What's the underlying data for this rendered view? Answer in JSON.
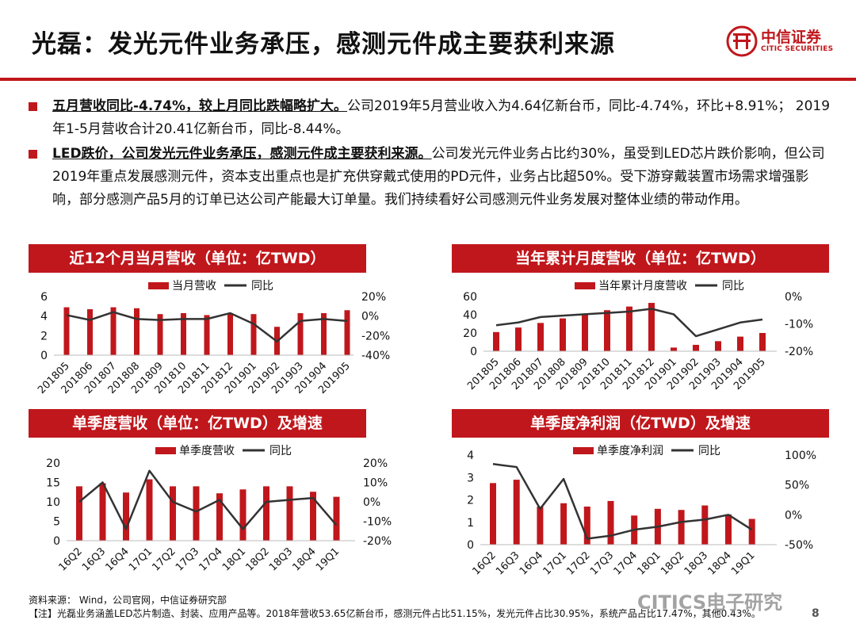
{
  "header": {
    "title": "光磊：发光元件业务承压，感测元件成主要获利来源",
    "logo_cn": "中信证券",
    "logo_en": "CITIC SECURITIES"
  },
  "bullets": [
    {
      "highlight": "五月营收同比-4.74%，较上月同比跌幅略扩大。",
      "text": "公司2019年5月营业收入为4.64亿新台币，同比-4.74%，环比+8.91%；  2019年1-5月营收合计20.41亿新台币，同比-8.44%。"
    },
    {
      "highlight": "LED跌价，公司发光元件业务承压，感测元件成主要获利来源。",
      "text": "公司发光元件业务占比约30%，虽受到LED芯片跌价影响，但公司2019年重点发展感测元件，资本支出重点也是扩充供穿戴式使用的PD元件，业务占比超50%。受下游穿戴装置市场需求增强影响，部分感测产品5月的订单已达公司产能最大订单量。我们持续看好公司感测元件业务发展对整体业绩的带动作用。"
    }
  ],
  "colors": {
    "bar": "#c0171c",
    "line": "#333333",
    "accent": "#c0171c"
  },
  "chart_data": [
    {
      "type": "bar",
      "title": "近12个月当月营收（单位：亿TWD）",
      "categories": [
        "201805",
        "201806",
        "201807",
        "201808",
        "201809",
        "201810",
        "201811",
        "201812",
        "201901",
        "201902",
        "201903",
        "201904",
        "201905"
      ],
      "series": [
        {
          "name": "当月营收",
          "type": "bar",
          "axis": "left",
          "values": [
            4.9,
            4.7,
            4.9,
            4.8,
            4.2,
            4.3,
            4.1,
            4.3,
            4.2,
            2.9,
            4.3,
            4.3,
            4.6
          ]
        },
        {
          "name": "同比",
          "type": "line",
          "axis": "right",
          "values": [
            1,
            -4,
            4,
            -3,
            -4,
            -3,
            -3,
            3,
            -8,
            -26,
            -5,
            -3,
            -5
          ]
        }
      ],
      "ylim": [
        0,
        6
      ],
      "yticks": [
        "0",
        "2",
        "4",
        "6"
      ],
      "y2lim": [
        -40,
        20
      ],
      "y2ticks": [
        "-40%",
        "-20%",
        "0%",
        "20%"
      ],
      "legend": "top-center"
    },
    {
      "type": "bar",
      "title": "当年累计月度营收（单位：亿TWD）",
      "categories": [
        "201805",
        "201806",
        "201807",
        "201808",
        "201809",
        "201810",
        "201811",
        "201812",
        "201901",
        "201902",
        "201903",
        "201904",
        "201905"
      ],
      "series": [
        {
          "name": "当年累计月度营收",
          "type": "bar",
          "axis": "left",
          "values": [
            21,
            26,
            31,
            36,
            40,
            45,
            49,
            53,
            4,
            7,
            11,
            16,
            20
          ]
        },
        {
          "name": "同比",
          "type": "line",
          "axis": "right",
          "values": [
            -10.5,
            -9.5,
            -7.5,
            -7,
            -6.5,
            -6,
            -5.5,
            -4.5,
            -6.5,
            -14.5,
            -12,
            -9.5,
            -8.4
          ]
        }
      ],
      "ylim": [
        0,
        60
      ],
      "yticks": [
        "0",
        "20",
        "40",
        "60"
      ],
      "y2lim": [
        -20,
        0
      ],
      "y2ticks": [
        "-20%",
        "-10%",
        "0%"
      ],
      "legend": "top-center"
    },
    {
      "type": "bar",
      "title": "单季度营收（单位：亿TWD）及增速",
      "categories": [
        "16Q2",
        "16Q3",
        "16Q4",
        "17Q1",
        "17Q2",
        "17Q3",
        "17Q4",
        "18Q1",
        "18Q2",
        "18Q3",
        "18Q4",
        "19Q1"
      ],
      "series": [
        {
          "name": "单季度营收",
          "type": "bar",
          "axis": "left",
          "values": [
            14,
            14.8,
            12.4,
            15.8,
            14,
            14,
            12.2,
            13.2,
            14,
            14,
            12.6,
            11.3
          ]
        },
        {
          "name": "同比",
          "type": "line",
          "axis": "right",
          "values": [
            0,
            10,
            -14,
            16,
            0,
            -5,
            1,
            -14,
            0,
            1,
            2,
            -12
          ]
        }
      ],
      "ylim": [
        0,
        20
      ],
      "yticks": [
        "0",
        "5",
        "10",
        "15",
        "20"
      ],
      "y2lim": [
        -20,
        20
      ],
      "y2ticks": [
        "-20%",
        "-10%",
        "0%",
        "10%",
        "20%"
      ],
      "legend": "top-center"
    },
    {
      "type": "bar",
      "title": "单季度净利润（亿TWD）及增速",
      "categories": [
        "16Q2",
        "16Q3",
        "16Q4",
        "17Q1",
        "17Q2",
        "17Q3",
        "17Q4",
        "18Q1",
        "18Q2",
        "18Q3",
        "18Q4",
        "19Q1"
      ],
      "series": [
        {
          "name": "单季度净利润",
          "type": "bar",
          "axis": "left",
          "values": [
            2.75,
            2.9,
            1.7,
            1.85,
            1.7,
            1.95,
            1.3,
            1.6,
            1.55,
            1.75,
            1.35,
            1.15
          ]
        },
        {
          "name": "同比",
          "type": "line",
          "axis": "right",
          "values": [
            85,
            80,
            10,
            60,
            -40,
            -35,
            -25,
            -20,
            -12,
            -8,
            0,
            -25
          ]
        }
      ],
      "ylim": [
        0,
        4
      ],
      "yticks": [
        "0",
        "1",
        "2",
        "3",
        "4"
      ],
      "y2lim": [
        -50,
        100
      ],
      "y2ticks": [
        "-50%",
        "0%",
        "50%",
        "100%"
      ],
      "legend": "top-center"
    }
  ],
  "footer": {
    "source": "资料来源： Wind，公司官网，中信证券研究部",
    "note": "【注】光磊业务涵盖LED芯片制造、封装、应用产品等。2018年营收53.65亿新台币，感测元件占比51.15%，发光元件占比30.95%，系统产品占比17.47%，其他0.43%。",
    "watermark": "CITICS电子研究",
    "page": "8"
  }
}
